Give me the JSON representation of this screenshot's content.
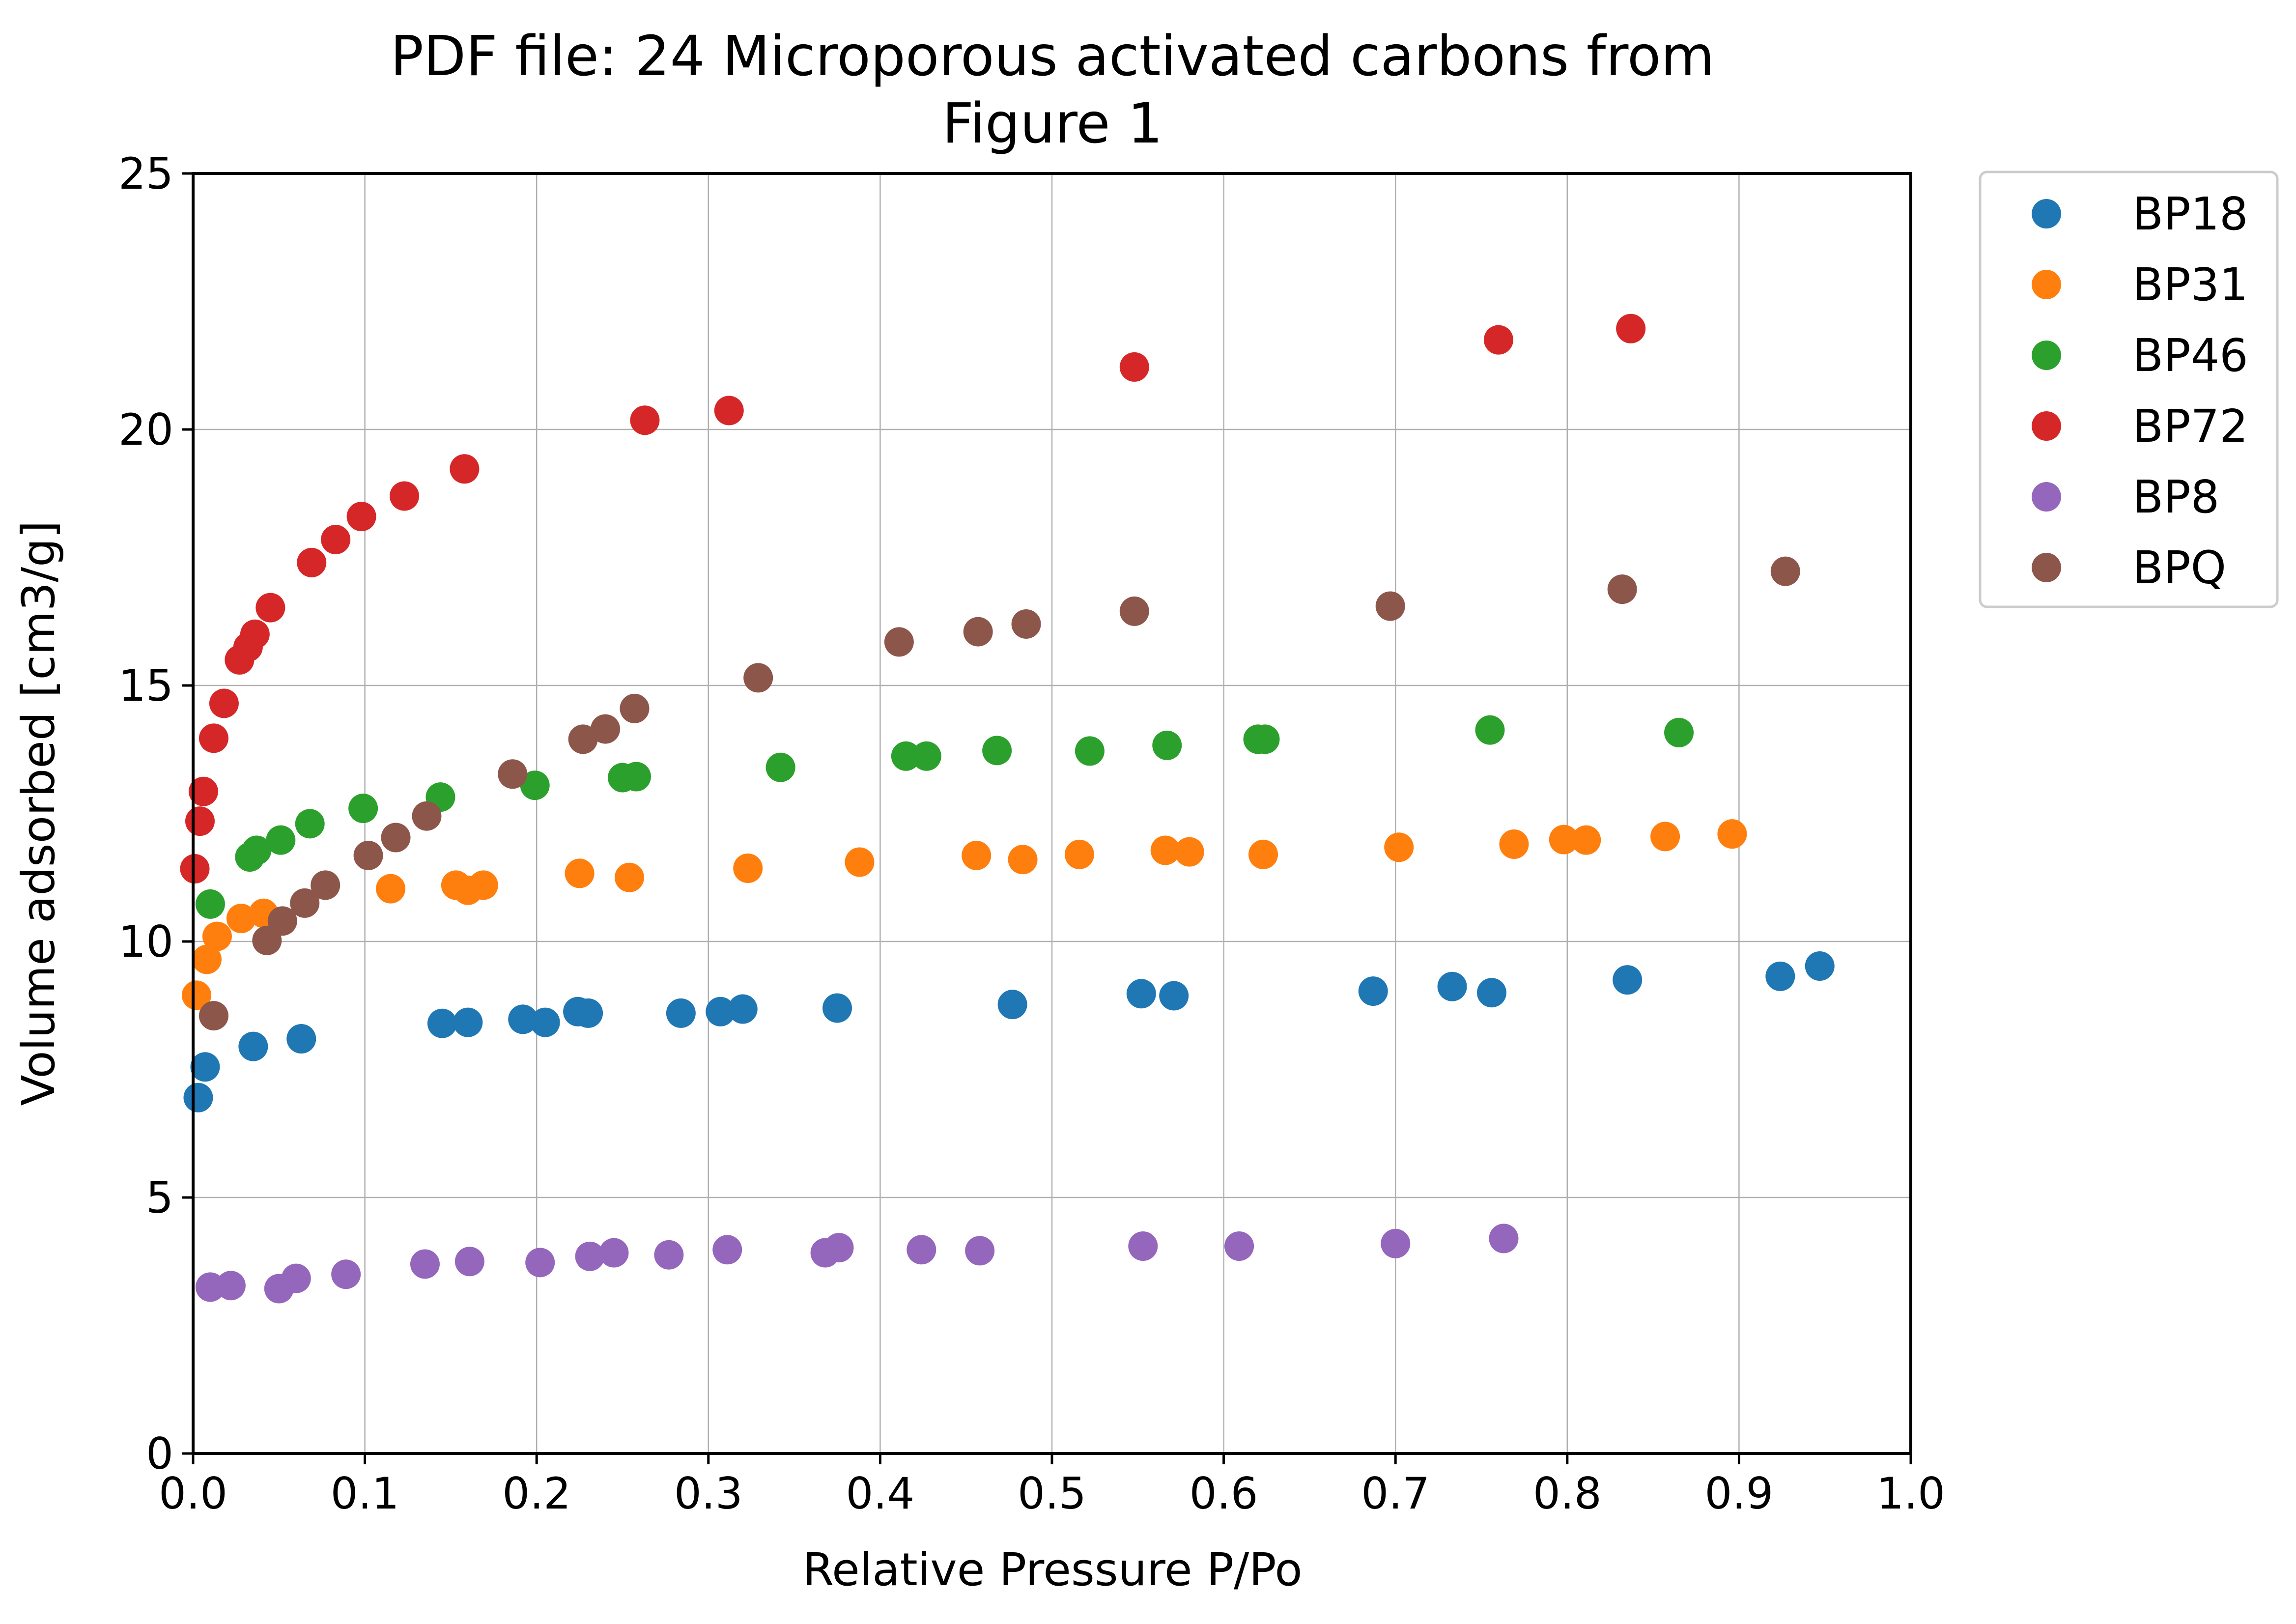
{
  "chart_data": {
    "type": "scatter",
    "title": "PDF file: 24 Microporous activated carbons from",
    "subtitle": "Figure 1",
    "xlabel": "Relative Pressure P/Po",
    "ylabel": "Volume adsorbed [cm3/g]",
    "xlim": [
      0.0,
      1.0
    ],
    "ylim": [
      0,
      25
    ],
    "xticks": [
      0.0,
      0.1,
      0.2,
      0.3,
      0.4,
      0.5,
      0.6,
      0.7,
      0.8,
      0.9,
      1.0
    ],
    "xtick_labels": [
      "0.0",
      "0.1",
      "0.2",
      "0.3",
      "0.4",
      "0.5",
      "0.6",
      "0.7",
      "0.8",
      "0.9",
      "1.0"
    ],
    "yticks": [
      0,
      5,
      10,
      15,
      20,
      25
    ],
    "ytick_labels": [
      "0",
      "5",
      "10",
      "15",
      "20",
      "25"
    ],
    "grid": true,
    "legend_position": "outside-top-right",
    "series": [
      {
        "name": "BP18",
        "color": "#1f77b4",
        "points": [
          [
            0.003,
            6.95
          ],
          [
            0.007,
            7.55
          ],
          [
            0.035,
            7.95
          ],
          [
            0.063,
            8.1
          ],
          [
            0.145,
            8.4
          ],
          [
            0.16,
            8.42
          ],
          [
            0.192,
            8.48
          ],
          [
            0.205,
            8.42
          ],
          [
            0.224,
            8.63
          ],
          [
            0.23,
            8.6
          ],
          [
            0.284,
            8.6
          ],
          [
            0.307,
            8.63
          ],
          [
            0.32,
            8.68
          ],
          [
            0.375,
            8.7
          ],
          [
            0.477,
            8.77
          ],
          [
            0.552,
            8.98
          ],
          [
            0.571,
            8.94
          ],
          [
            0.687,
            9.03
          ],
          [
            0.733,
            9.12
          ],
          [
            0.756,
            9.0
          ],
          [
            0.835,
            9.25
          ],
          [
            0.924,
            9.32
          ],
          [
            0.947,
            9.52
          ]
        ]
      },
      {
        "name": "BP31",
        "color": "#ff7f0e",
        "points": [
          [
            0.002,
            8.95
          ],
          [
            0.008,
            9.65
          ],
          [
            0.014,
            10.1
          ],
          [
            0.028,
            10.45
          ],
          [
            0.041,
            10.55
          ],
          [
            0.115,
            11.03
          ],
          [
            0.153,
            11.1
          ],
          [
            0.16,
            11.0
          ],
          [
            0.169,
            11.1
          ],
          [
            0.225,
            11.33
          ],
          [
            0.254,
            11.25
          ],
          [
            0.323,
            11.43
          ],
          [
            0.388,
            11.55
          ],
          [
            0.456,
            11.68
          ],
          [
            0.483,
            11.6
          ],
          [
            0.516,
            11.7
          ],
          [
            0.566,
            11.78
          ],
          [
            0.58,
            11.75
          ],
          [
            0.623,
            11.7
          ],
          [
            0.702,
            11.84
          ],
          [
            0.769,
            11.9
          ],
          [
            0.798,
            11.99
          ],
          [
            0.811,
            11.98
          ],
          [
            0.857,
            12.05
          ],
          [
            0.896,
            12.1
          ]
        ]
      },
      {
        "name": "BP46",
        "color": "#2ca02c",
        "points": [
          [
            0.01,
            10.73
          ],
          [
            0.033,
            11.65
          ],
          [
            0.037,
            11.78
          ],
          [
            0.051,
            11.98
          ],
          [
            0.068,
            12.3
          ],
          [
            0.099,
            12.6
          ],
          [
            0.144,
            12.82
          ],
          [
            0.199,
            13.05
          ],
          [
            0.25,
            13.2
          ],
          [
            0.258,
            13.22
          ],
          [
            0.342,
            13.4
          ],
          [
            0.415,
            13.62
          ],
          [
            0.427,
            13.62
          ],
          [
            0.468,
            13.73
          ],
          [
            0.522,
            13.72
          ],
          [
            0.567,
            13.83
          ],
          [
            0.62,
            13.95
          ],
          [
            0.624,
            13.95
          ],
          [
            0.755,
            14.13
          ],
          [
            0.865,
            14.08
          ]
        ]
      },
      {
        "name": "BP72",
        "color": "#d62728",
        "points": [
          [
            0.001,
            11.42
          ],
          [
            0.004,
            12.35
          ],
          [
            0.006,
            12.93
          ],
          [
            0.012,
            13.97
          ],
          [
            0.018,
            14.65
          ],
          [
            0.027,
            15.5
          ],
          [
            0.032,
            15.75
          ],
          [
            0.036,
            16.0
          ],
          [
            0.045,
            16.52
          ],
          [
            0.069,
            17.4
          ],
          [
            0.083,
            17.85
          ],
          [
            0.098,
            18.3
          ],
          [
            0.123,
            18.7
          ],
          [
            0.158,
            19.23
          ],
          [
            0.263,
            20.18
          ],
          [
            0.312,
            20.37
          ],
          [
            0.548,
            21.22
          ],
          [
            0.76,
            21.75
          ],
          [
            0.837,
            21.97
          ]
        ]
      },
      {
        "name": "BP8",
        "color": "#9467bd",
        "points": [
          [
            0.01,
            3.25
          ],
          [
            0.022,
            3.28
          ],
          [
            0.05,
            3.22
          ],
          [
            0.06,
            3.42
          ],
          [
            0.089,
            3.5
          ],
          [
            0.135,
            3.7
          ],
          [
            0.161,
            3.75
          ],
          [
            0.202,
            3.73
          ],
          [
            0.231,
            3.85
          ],
          [
            0.245,
            3.92
          ],
          [
            0.277,
            3.88
          ],
          [
            0.311,
            3.98
          ],
          [
            0.368,
            3.92
          ],
          [
            0.376,
            4.02
          ],
          [
            0.424,
            3.98
          ],
          [
            0.458,
            3.96
          ],
          [
            0.553,
            4.05
          ],
          [
            0.609,
            4.05
          ],
          [
            0.7,
            4.1
          ],
          [
            0.763,
            4.2
          ]
        ]
      },
      {
        "name": "BPQ",
        "color": "#8c564b",
        "points": [
          [
            0.012,
            8.55
          ],
          [
            0.043,
            10.02
          ],
          [
            0.052,
            10.4
          ],
          [
            0.065,
            10.75
          ],
          [
            0.077,
            11.1
          ],
          [
            0.102,
            11.68
          ],
          [
            0.118,
            12.03
          ],
          [
            0.136,
            12.45
          ],
          [
            0.186,
            13.27
          ],
          [
            0.227,
            13.95
          ],
          [
            0.24,
            14.15
          ],
          [
            0.257,
            14.55
          ],
          [
            0.329,
            15.15
          ],
          [
            0.411,
            15.85
          ],
          [
            0.457,
            16.05
          ],
          [
            0.485,
            16.2
          ],
          [
            0.548,
            16.45
          ],
          [
            0.697,
            16.55
          ],
          [
            0.832,
            16.88
          ],
          [
            0.927,
            17.23
          ]
        ]
      }
    ]
  }
}
